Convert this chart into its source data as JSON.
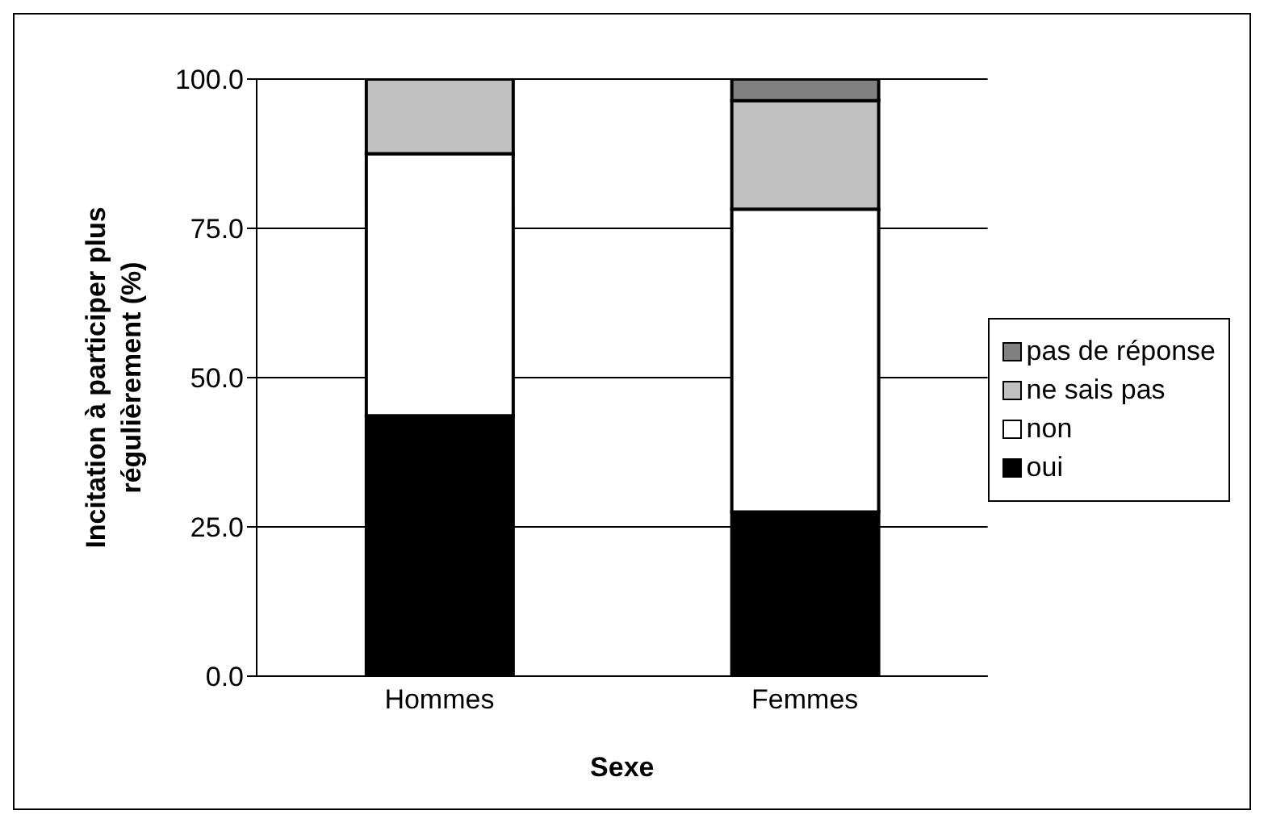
{
  "chart_data": {
    "type": "bar",
    "stacked": true,
    "xlabel": "Sexe",
    "ylabel": "Incitation à participer plus régulièrement (%)",
    "categories": [
      "Hommes",
      "Femmes"
    ],
    "series": [
      {
        "name": "oui",
        "color": "#000000",
        "values": [
          43.6,
          27.5
        ]
      },
      {
        "name": "non",
        "color": "#ffffff",
        "values": [
          43.9,
          50.7
        ]
      },
      {
        "name": "ne sais pas",
        "color": "#c0c0c0",
        "values": [
          12.5,
          18.2
        ]
      },
      {
        "name": "pas de réponse",
        "color": "#808080",
        "values": [
          0,
          3.6
        ]
      }
    ],
    "ylim": [
      0,
      100
    ],
    "yticks": [
      {
        "value": 0,
        "label": "0.0"
      },
      {
        "value": 25,
        "label": "25.0"
      },
      {
        "value": 50,
        "label": "50.0"
      },
      {
        "value": 75,
        "label": "75.0"
      },
      {
        "value": 100,
        "label": "100.0"
      }
    ],
    "grid": "y",
    "legend": "right"
  }
}
